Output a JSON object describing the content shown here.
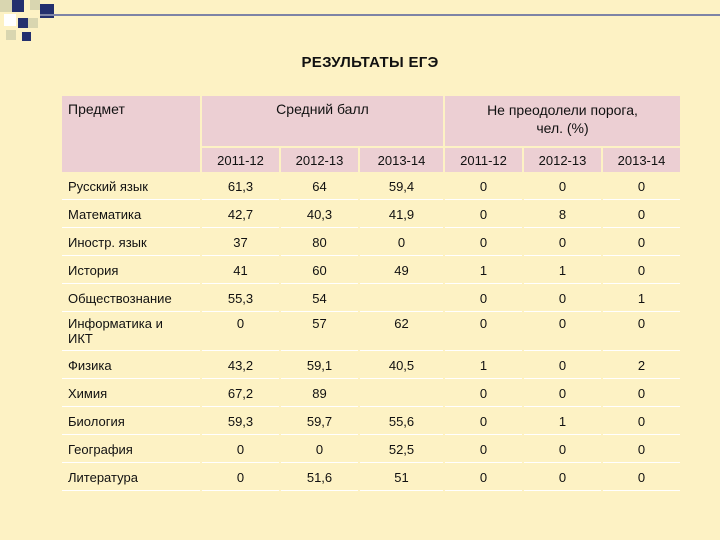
{
  "title": "РЕЗУЛЬТАТЫ ЕГЭ",
  "header": {
    "subject": "Предмет",
    "avg_score": "Средний балл",
    "fail_line1": "Не преодолели порога,",
    "fail_line2": "чел. (%)",
    "years": [
      "2011-12",
      "2012-13",
      "2013-14",
      "2011-12",
      "2012-13",
      "2013-14"
    ]
  },
  "rows": [
    {
      "subject": "Русский язык",
      "values": [
        "61,3",
        "64",
        "59,4",
        "0",
        "0",
        "0"
      ]
    },
    {
      "subject": "Математика",
      "values": [
        "42,7",
        "40,3",
        "41,9",
        "0",
        "8",
        "0"
      ]
    },
    {
      "subject": "Иностр. язык",
      "values": [
        "37",
        "80",
        "0",
        "0",
        "0",
        "0"
      ]
    },
    {
      "subject": "История",
      "values": [
        "41",
        "60",
        "49",
        "1",
        "1",
        "0"
      ]
    },
    {
      "subject": "Обществознание",
      "values": [
        "55,3",
        "54",
        "",
        "0",
        "0",
        "1"
      ]
    },
    {
      "subject_line1": "Информатика и",
      "subject_line2": "ИКТ",
      "values": [
        "0",
        "57",
        "62",
        "0",
        "0",
        "0"
      ]
    },
    {
      "subject": "Физика",
      "values": [
        "43,2",
        "59,1",
        "40,5",
        "1",
        "0",
        "2"
      ]
    },
    {
      "subject": "Химия",
      "values": [
        "67,2",
        "89",
        "",
        "0",
        "0",
        "0"
      ]
    },
    {
      "subject": "Биология",
      "values": [
        "59,3",
        "59,7",
        "55,6",
        "0",
        "1",
        "0"
      ]
    },
    {
      "subject": "География",
      "values": [
        "0",
        "0",
        "52,5",
        "0",
        "0",
        "0"
      ]
    },
    {
      "subject": "Литература",
      "values": [
        "0",
        "51,6",
        "51",
        "0",
        "0",
        "0"
      ]
    }
  ]
}
